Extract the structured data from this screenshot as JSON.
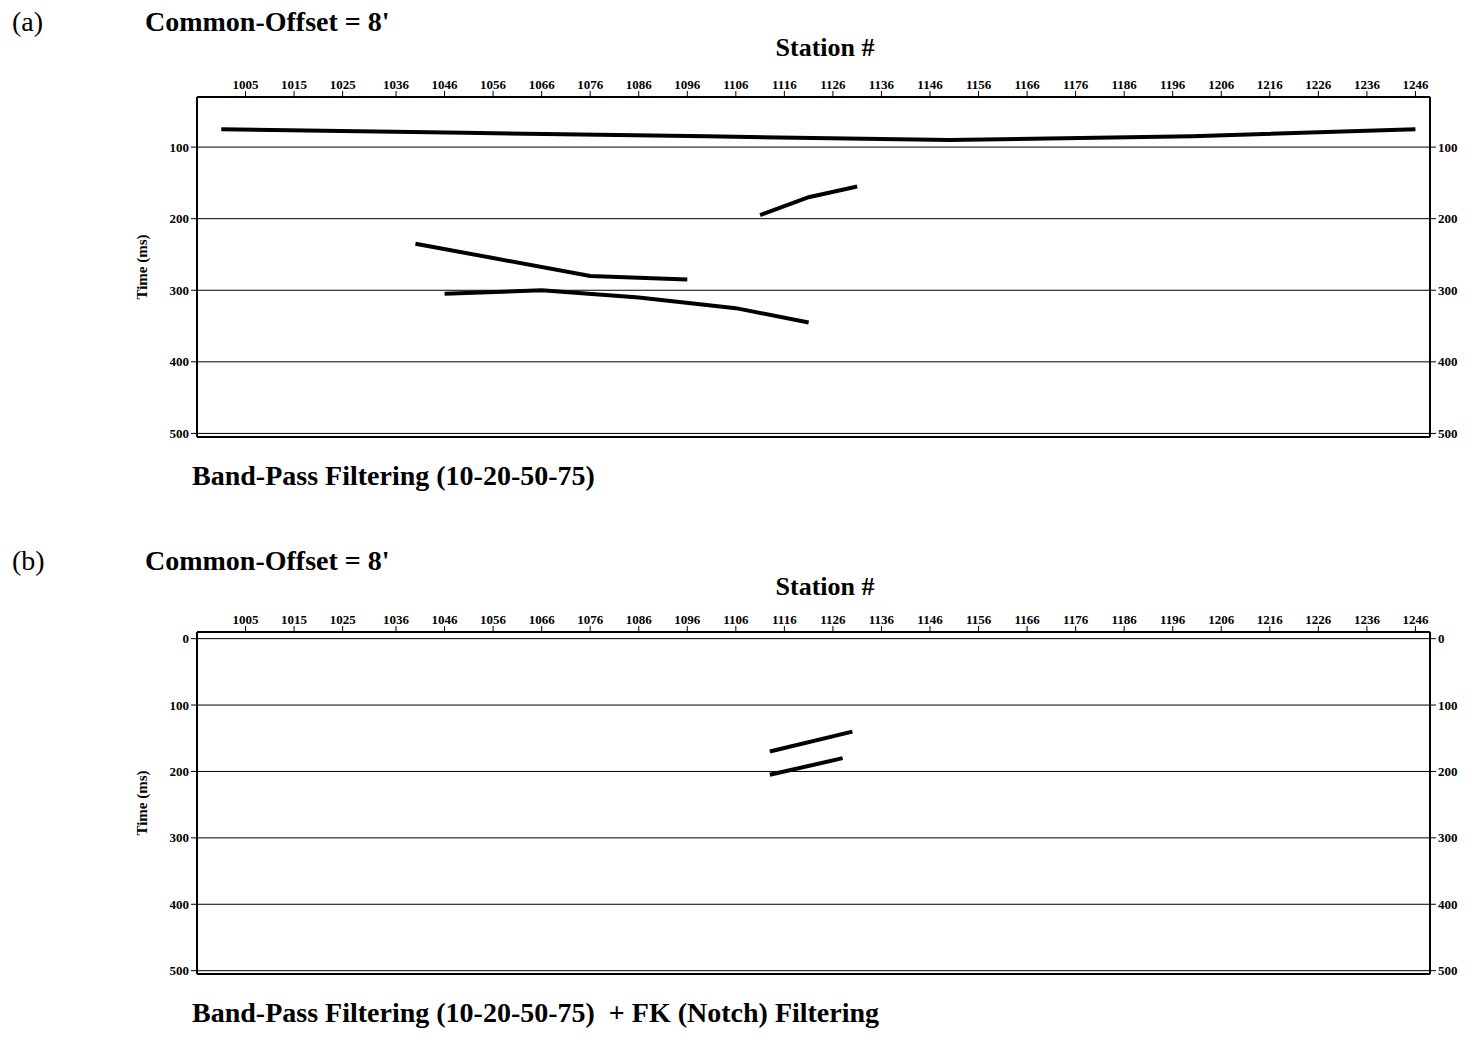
{
  "chart_data": [
    {
      "type": "line",
      "panel": "(a)",
      "title": "Common-Offset = 8'",
      "x_label": "Station #",
      "y_label": "Time (ms)",
      "caption": "Band-Pass Filtering (10-20-50-75)",
      "xlim": [
        995,
        1249
      ],
      "xticks": [
        1005,
        1015,
        1025,
        1036,
        1046,
        1056,
        1066,
        1076,
        1086,
        1096,
        1106,
        1116,
        1126,
        1136,
        1146,
        1156,
        1166,
        1176,
        1186,
        1196,
        1206,
        1216,
        1226,
        1236,
        1246
      ],
      "ylim": [
        30,
        505
      ],
      "yticks": [
        100,
        200,
        300,
        400,
        500
      ],
      "grid": true,
      "line_style": "solid",
      "series": [
        {
          "color": "#000000",
          "x": [
            1000,
            1050,
            1100,
            1150,
            1200,
            1246
          ],
          "values": [
            75,
            80,
            85,
            90,
            85,
            75
          ]
        },
        {
          "color": "#000000",
          "x": [
            1040,
            1056,
            1076,
            1096
          ],
          "values": [
            235,
            255,
            280,
            285
          ]
        },
        {
          "color": "#000000",
          "x": [
            1046,
            1066,
            1086,
            1106,
            1121
          ],
          "values": [
            305,
            300,
            310,
            325,
            345
          ]
        },
        {
          "color": "#000000",
          "x": [
            1111,
            1121,
            1131
          ],
          "values": [
            195,
            170,
            155
          ]
        }
      ]
    },
    {
      "type": "line",
      "panel": "(b)",
      "title": "Common-Offset = 8'",
      "x_label": "Station #",
      "y_label": "Time (ms)",
      "caption": "Band-Pass Filtering (10-20-50-75)  + FK (Notch) Filtering",
      "xlim": [
        995,
        1249
      ],
      "xticks": [
        1005,
        1015,
        1025,
        1036,
        1046,
        1056,
        1066,
        1076,
        1086,
        1096,
        1106,
        1116,
        1126,
        1136,
        1146,
        1156,
        1166,
        1176,
        1186,
        1196,
        1206,
        1216,
        1226,
        1236,
        1246
      ],
      "ylim": [
        -10,
        505
      ],
      "yticks": [
        0,
        100,
        200,
        300,
        400,
        500
      ],
      "grid": true,
      "line_style": "solid",
      "series": [
        {
          "color": "#000000",
          "x": [
            1113,
            1130
          ],
          "values": [
            170,
            140
          ]
        },
        {
          "color": "#000000",
          "x": [
            1113,
            1128
          ],
          "values": [
            205,
            180
          ]
        }
      ]
    }
  ]
}
